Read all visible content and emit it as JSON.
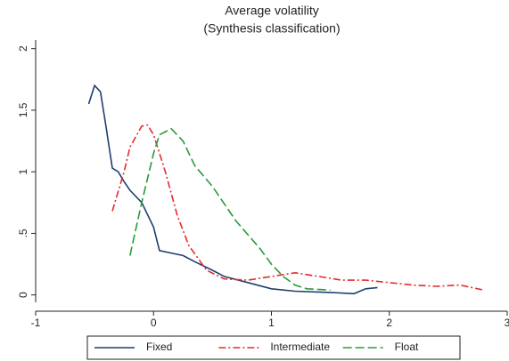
{
  "chart_data": {
    "type": "line",
    "title": "Average volatility",
    "subtitle": "(Synthesis classification)",
    "xlim": [
      -1,
      3
    ],
    "xticks": [
      -1,
      0,
      1,
      2,
      3
    ],
    "ylim": [
      -0.06,
      2.07
    ],
    "yticks": [
      0,
      {
        "value": 0.5,
        "label": ".5"
      },
      1,
      1.5,
      2
    ],
    "legend": "bottom",
    "series": [
      {
        "name": "Fixed",
        "color": "#1f3f6e",
        "linestyle": "solid",
        "x": [
          -0.55,
          -0.5,
          -0.45,
          -0.4,
          -0.35,
          -0.3,
          -0.25,
          -0.2,
          -0.1,
          0,
          0.05,
          0.15,
          0.25,
          0.35,
          0.5,
          0.6,
          0.8,
          1,
          1.2,
          1.5,
          1.7,
          1.8,
          1.9
        ],
        "values": [
          1.55,
          1.7,
          1.65,
          1.35,
          1.03,
          1.0,
          0.92,
          0.85,
          0.75,
          0.55,
          0.36,
          0.34,
          0.32,
          0.27,
          0.2,
          0.15,
          0.1,
          0.05,
          0.03,
          0.02,
          0.01,
          0.05,
          0.06
        ]
      },
      {
        "name": "Intermediate",
        "color": "#e8292b",
        "linestyle": "dashdot",
        "x": [
          -0.35,
          -0.25,
          -0.2,
          -0.1,
          -0.05,
          0,
          0.1,
          0.2,
          0.3,
          0.45,
          0.6,
          0.8,
          1,
          1.2,
          1.4,
          1.6,
          1.8,
          2,
          2.2,
          2.4,
          2.6,
          2.8
        ],
        "values": [
          0.68,
          1.0,
          1.2,
          1.37,
          1.38,
          1.3,
          1.0,
          0.65,
          0.4,
          0.2,
          0.13,
          0.12,
          0.15,
          0.18,
          0.15,
          0.12,
          0.12,
          0.1,
          0.08,
          0.07,
          0.08,
          0.04
        ]
      },
      {
        "name": "Float",
        "color": "#2a9a3a",
        "linestyle": "dash",
        "x": [
          -0.2,
          -0.1,
          0,
          0.05,
          0.15,
          0.25,
          0.35,
          0.5,
          0.7,
          0.9,
          1.0,
          1.1,
          1.2,
          1.3,
          1.5
        ],
        "values": [
          0.32,
          0.75,
          1.15,
          1.3,
          1.35,
          1.25,
          1.05,
          0.88,
          0.6,
          0.38,
          0.25,
          0.15,
          0.08,
          0.05,
          0.04
        ]
      }
    ]
  }
}
